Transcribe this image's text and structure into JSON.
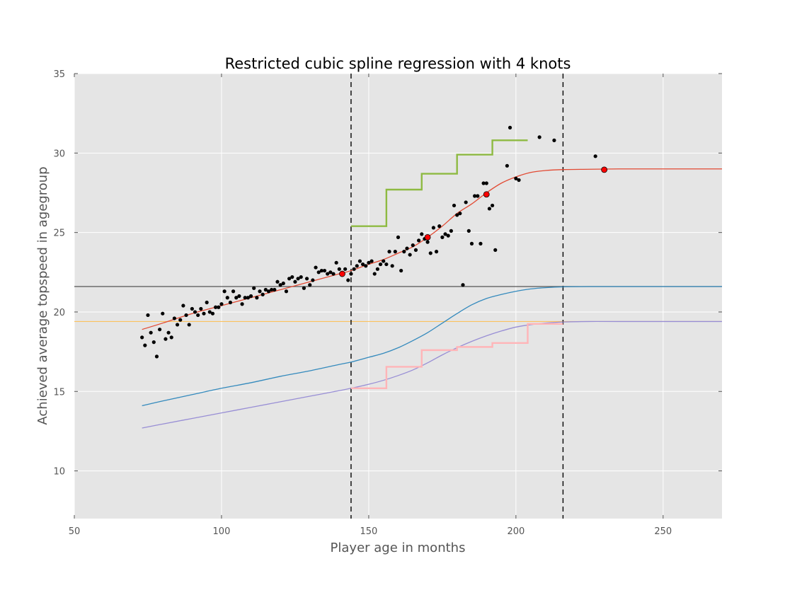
{
  "chart_data": {
    "type": "line",
    "title": "Restricted cubic spline regression with 4 knots",
    "xlabel": "Player age in months",
    "ylabel": "Achieved average topspeed in agegroup",
    "xlim": [
      50,
      270
    ],
    "ylim": [
      7,
      35
    ],
    "xticks": [
      50,
      100,
      150,
      200,
      250
    ],
    "yticks": [
      10,
      15,
      20,
      25,
      30,
      35
    ],
    "grid": true,
    "background": "#e5e5e5",
    "scatter": {
      "color": "#000000",
      "points": [
        [
          73,
          18.4
        ],
        [
          74,
          17.9
        ],
        [
          75,
          19.8
        ],
        [
          76,
          18.7
        ],
        [
          77,
          18.1
        ],
        [
          78,
          17.2
        ],
        [
          79,
          18.9
        ],
        [
          80,
          19.9
        ],
        [
          81,
          18.3
        ],
        [
          82,
          18.7
        ],
        [
          83,
          18.4
        ],
        [
          84,
          19.6
        ],
        [
          85,
          19.2
        ],
        [
          86,
          19.5
        ],
        [
          87,
          20.4
        ],
        [
          88,
          19.8
        ],
        [
          89,
          19.2
        ],
        [
          90,
          20.2
        ],
        [
          91,
          20.0
        ],
        [
          92,
          19.8
        ],
        [
          93,
          20.2
        ],
        [
          94,
          19.9
        ],
        [
          95,
          20.6
        ],
        [
          96,
          20.0
        ],
        [
          97,
          19.9
        ],
        [
          98,
          20.3
        ],
        [
          99,
          20.3
        ],
        [
          100,
          20.5
        ],
        [
          101,
          21.3
        ],
        [
          102,
          20.9
        ],
        [
          103,
          20.6
        ],
        [
          104,
          21.3
        ],
        [
          105,
          20.9
        ],
        [
          106,
          21.0
        ],
        [
          107,
          20.5
        ],
        [
          108,
          20.9
        ],
        [
          109,
          20.9
        ],
        [
          110,
          21.0
        ],
        [
          111,
          21.5
        ],
        [
          112,
          20.9
        ],
        [
          113,
          21.3
        ],
        [
          114,
          21.1
        ],
        [
          115,
          21.4
        ],
        [
          116,
          21.3
        ],
        [
          117,
          21.4
        ],
        [
          118,
          21.4
        ],
        [
          119,
          21.9
        ],
        [
          120,
          21.7
        ],
        [
          121,
          21.8
        ],
        [
          122,
          21.3
        ],
        [
          123,
          22.1
        ],
        [
          124,
          22.2
        ],
        [
          125,
          21.9
        ],
        [
          126,
          22.1
        ],
        [
          127,
          22.2
        ],
        [
          128,
          21.5
        ],
        [
          129,
          22.1
        ],
        [
          130,
          21.7
        ],
        [
          131,
          22.0
        ],
        [
          132,
          22.8
        ],
        [
          133,
          22.5
        ],
        [
          134,
          22.6
        ],
        [
          135,
          22.6
        ],
        [
          136,
          22.4
        ],
        [
          137,
          22.5
        ],
        [
          138,
          22.4
        ],
        [
          139,
          23.1
        ],
        [
          140,
          22.7
        ],
        [
          141,
          22.4
        ],
        [
          142,
          22.7
        ],
        [
          143,
          22.0
        ],
        [
          144,
          22.4
        ],
        [
          145,
          22.7
        ],
        [
          146,
          22.9
        ],
        [
          147,
          23.2
        ],
        [
          148,
          23.0
        ],
        [
          149,
          22.9
        ],
        [
          150,
          23.1
        ],
        [
          151,
          23.2
        ],
        [
          152,
          22.4
        ],
        [
          153,
          22.7
        ],
        [
          154,
          23.0
        ],
        [
          155,
          23.2
        ],
        [
          156,
          23.0
        ],
        [
          157,
          23.8
        ],
        [
          158,
          22.9
        ],
        [
          159,
          23.8
        ],
        [
          160,
          24.7
        ],
        [
          161,
          22.6
        ],
        [
          162,
          23.8
        ],
        [
          163,
          24.0
        ],
        [
          164,
          23.6
        ],
        [
          165,
          24.2
        ],
        [
          166,
          23.9
        ],
        [
          167,
          24.5
        ],
        [
          168,
          24.9
        ],
        [
          169,
          24.6
        ],
        [
          170,
          24.4
        ],
        [
          171,
          23.7
        ],
        [
          172,
          25.3
        ],
        [
          173,
          23.8
        ],
        [
          174,
          25.4
        ],
        [
          175,
          24.7
        ],
        [
          176,
          24.9
        ],
        [
          177,
          24.8
        ],
        [
          178,
          25.1
        ],
        [
          179,
          26.7
        ],
        [
          180,
          26.1
        ],
        [
          181,
          26.2
        ],
        [
          182,
          21.7
        ],
        [
          183,
          26.9
        ],
        [
          184,
          25.1
        ],
        [
          185,
          24.3
        ],
        [
          186,
          27.3
        ],
        [
          187,
          27.3
        ],
        [
          188,
          24.3
        ],
        [
          189,
          28.1
        ],
        [
          190,
          28.1
        ],
        [
          191,
          26.5
        ],
        [
          192,
          26.7
        ],
        [
          193,
          23.9
        ],
        [
          197,
          29.2
        ],
        [
          198,
          31.6
        ],
        [
          200,
          28.4
        ],
        [
          201,
          28.3
        ],
        [
          208,
          31.0
        ],
        [
          213,
          30.8
        ],
        [
          227,
          29.8
        ]
      ]
    },
    "series": [
      {
        "color": "#e24a33",
        "x": [
          73,
          80,
          90,
          100,
          110,
          120,
          130,
          140,
          144,
          150,
          155,
          160,
          165,
          170,
          175,
          180,
          185,
          190,
          195,
          200,
          205,
          210,
          216,
          225,
          235,
          250,
          270
        ],
        "values": [
          18.9,
          19.3,
          19.9,
          20.4,
          20.9,
          21.4,
          21.9,
          22.4,
          22.6,
          23.0,
          23.3,
          23.7,
          24.1,
          24.7,
          25.4,
          26.2,
          26.8,
          27.5,
          28.1,
          28.5,
          28.78,
          28.9,
          28.96,
          28.98,
          29.0,
          29.0,
          29.0
        ]
      },
      {
        "color": "#348abd",
        "x": [
          73,
          80,
          90,
          100,
          110,
          120,
          130,
          140,
          144,
          150,
          155,
          160,
          165,
          170,
          175,
          180,
          185,
          190,
          195,
          200,
          205,
          210,
          216,
          225,
          235,
          250,
          270
        ],
        "values": [
          14.1,
          14.4,
          14.8,
          15.2,
          15.55,
          15.95,
          16.3,
          16.7,
          16.85,
          17.15,
          17.4,
          17.75,
          18.2,
          18.7,
          19.3,
          19.9,
          20.45,
          20.85,
          21.1,
          21.3,
          21.45,
          21.53,
          21.58,
          21.6,
          21.6,
          21.6,
          21.6
        ]
      },
      {
        "color": "#988ed5",
        "x": [
          73,
          80,
          90,
          100,
          110,
          120,
          130,
          140,
          144,
          150,
          155,
          160,
          165,
          170,
          175,
          180,
          185,
          190,
          195,
          200,
          205,
          210,
          216,
          225,
          235,
          250,
          270
        ],
        "values": [
          12.7,
          12.95,
          13.3,
          13.65,
          14.0,
          14.35,
          14.7,
          15.05,
          15.2,
          15.45,
          15.7,
          16.0,
          16.35,
          16.8,
          17.3,
          17.75,
          18.15,
          18.5,
          18.8,
          19.05,
          19.2,
          19.3,
          19.37,
          19.4,
          19.4,
          19.4,
          19.4
        ]
      }
    ],
    "step_series": [
      {
        "color": "#8eba42",
        "x": [
          144,
          156,
          156,
          168,
          168,
          180,
          180,
          192,
          192,
          204
        ],
        "values": [
          25.4,
          25.4,
          27.7,
          27.7,
          28.7,
          28.7,
          29.9,
          29.9,
          30.8,
          30.8
        ]
      },
      {
        "color": "#ffb5b8",
        "x": [
          144,
          156,
          156,
          168,
          168,
          180,
          180,
          192,
          192,
          204,
          204,
          216
        ],
        "values": [
          15.2,
          15.2,
          16.55,
          16.55,
          17.6,
          17.6,
          17.8,
          17.8,
          18.05,
          18.05,
          19.25,
          19.25
        ]
      }
    ],
    "hlines": [
      {
        "y": 21.6,
        "color": "#555555"
      },
      {
        "y": 19.4,
        "color": "#fbc15e"
      }
    ],
    "vlines": [
      {
        "x": 144,
        "color": "#000000",
        "style": "dashed"
      },
      {
        "x": 216,
        "color": "#000000",
        "style": "dashed"
      }
    ],
    "knots": {
      "color": "#ff0000",
      "points": [
        [
          141,
          22.4
        ],
        [
          170,
          24.7
        ],
        [
          190,
          27.4
        ],
        [
          230,
          28.95
        ]
      ]
    }
  }
}
